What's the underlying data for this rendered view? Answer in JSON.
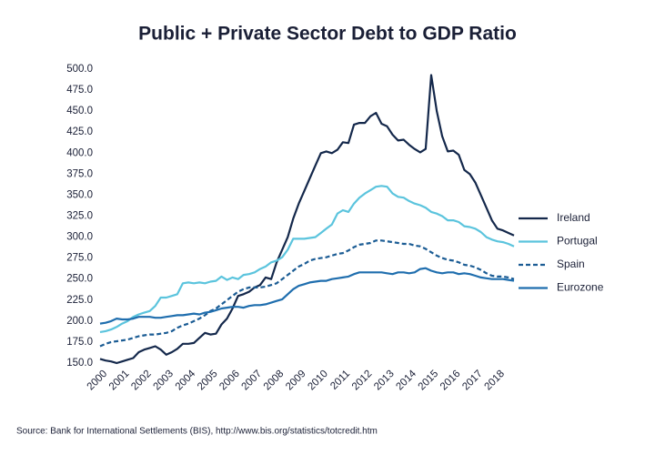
{
  "chart_data": {
    "type": "line",
    "title": "Public + Private Sector Debt to GDP Ratio",
    "source": "Source: Bank for International Settlements (BIS), http://www.bis.org/statistics/totcredit.htm",
    "x": [
      2000,
      2000.25,
      2000.5,
      2000.75,
      2001,
      2001.25,
      2001.5,
      2001.75,
      2002,
      2002.25,
      2002.5,
      2002.75,
      2003,
      2003.25,
      2003.5,
      2003.75,
      2004,
      2004.25,
      2004.5,
      2004.75,
      2005,
      2005.25,
      2005.5,
      2005.75,
      2006,
      2006.25,
      2006.5,
      2006.75,
      2007,
      2007.25,
      2007.5,
      2007.75,
      2008,
      2008.25,
      2008.5,
      2008.75,
      2009,
      2009.25,
      2009.5,
      2009.75,
      2010,
      2010.25,
      2010.5,
      2010.75,
      2011,
      2011.25,
      2011.5,
      2011.75,
      2012,
      2012.25,
      2012.5,
      2012.75,
      2013,
      2013.25,
      2013.5,
      2013.75,
      2014,
      2014.25,
      2014.5,
      2014.75,
      2015,
      2015.25,
      2015.5,
      2015.75,
      2016,
      2016.25,
      2016.5,
      2016.75,
      2017,
      2017.25,
      2017.5,
      2017.75,
      2018,
      2018.25,
      2018.5,
      2018.75
    ],
    "series": [
      {
        "name": "Ireland",
        "color": "#14284b",
        "line_style": "solid",
        "values": [
          155,
          153,
          152,
          150,
          152,
          154,
          156,
          163,
          166,
          168,
          170,
          166,
          160,
          163,
          167,
          173,
          173,
          174,
          180,
          186,
          184,
          185,
          196,
          203,
          215,
          230,
          232,
          235,
          240,
          243,
          252,
          250,
          270,
          285,
          300,
          322,
          340,
          355,
          370,
          385,
          400,
          402,
          400,
          404,
          413,
          412,
          434,
          436,
          436,
          444,
          448,
          435,
          432,
          422,
          415,
          416,
          410,
          405,
          401,
          405,
          493,
          450,
          420,
          402,
          403,
          398,
          380,
          375,
          365,
          350,
          335,
          320,
          310,
          308,
          305,
          302
        ]
      },
      {
        "name": "Portugal",
        "color": "#5bc4dd",
        "line_style": "solid",
        "values": [
          187,
          188,
          190,
          193,
          197,
          200,
          205,
          208,
          210,
          212,
          218,
          228,
          228,
          230,
          232,
          245,
          246,
          245,
          246,
          245,
          247,
          248,
          253,
          249,
          252,
          250,
          255,
          256,
          258,
          262,
          265,
          270,
          272,
          276,
          285,
          298,
          298,
          298,
          299,
          300,
          305,
          310,
          315,
          328,
          332,
          330,
          340,
          347,
          352,
          356,
          360,
          361,
          360,
          352,
          348,
          347,
          343,
          340,
          338,
          335,
          330,
          328,
          325,
          320,
          320,
          318,
          313,
          312,
          310,
          306,
          300,
          297,
          295,
          294,
          292,
          289
        ]
      },
      {
        "name": "Spain",
        "color": "#1b5c94",
        "line_style": "dashed",
        "values": [
          170,
          173,
          175,
          176,
          177,
          178,
          180,
          182,
          183,
          184,
          184,
          185,
          186,
          188,
          192,
          195,
          197,
          200,
          203,
          207,
          212,
          215,
          220,
          225,
          230,
          235,
          238,
          240,
          240,
          240,
          241,
          243,
          245,
          250,
          255,
          260,
          265,
          268,
          272,
          274,
          275,
          276,
          278,
          280,
          281,
          284,
          288,
          291,
          292,
          293,
          296,
          296,
          295,
          294,
          293,
          292,
          292,
          290,
          289,
          286,
          282,
          278,
          275,
          273,
          272,
          270,
          267,
          266,
          264,
          261,
          257,
          254,
          253,
          253,
          252,
          250
        ]
      },
      {
        "name": "Eurozone",
        "color": "#1f6eae",
        "line_style": "solid",
        "values": [
          197,
          198,
          200,
          203,
          202,
          202,
          203,
          205,
          205,
          205,
          204,
          204,
          205,
          206,
          207,
          207,
          208,
          209,
          208,
          210,
          211,
          213,
          215,
          216,
          217,
          217,
          216,
          218,
          219,
          219,
          220,
          222,
          224,
          226,
          232,
          238,
          242,
          244,
          246,
          247,
          248,
          248,
          250,
          251,
          252,
          253,
          256,
          258,
          258,
          258,
          258,
          258,
          257,
          256,
          258,
          258,
          257,
          258,
          262,
          263,
          260,
          258,
          257,
          258,
          258,
          256,
          257,
          256,
          254,
          252,
          251,
          250,
          250,
          250,
          249,
          248
        ]
      }
    ],
    "xlim": [
      2000,
      2018.75
    ],
    "xticks": [
      2000,
      2001,
      2002,
      2003,
      2004,
      2005,
      2006,
      2007,
      2008,
      2009,
      2010,
      2011,
      2012,
      2013,
      2014,
      2015,
      2016,
      2017,
      2018
    ],
    "ylim": [
      150,
      500
    ],
    "yticks": [
      {
        "value": 150,
        "label": "150.0"
      },
      {
        "value": 175,
        "label": "175.0"
      },
      {
        "value": 200,
        "label": "200.0"
      },
      {
        "value": 225,
        "label": "225.0"
      },
      {
        "value": 250,
        "label": "250.0"
      },
      {
        "value": 275,
        "label": "275.0"
      },
      {
        "value": 300,
        "label": "300.0"
      },
      {
        "value": 325,
        "label": "325.0"
      },
      {
        "value": 350,
        "label": "350.0"
      },
      {
        "value": 375,
        "label": "375.0"
      },
      {
        "value": 400,
        "label": "400.0"
      },
      {
        "value": 425,
        "label": "425.0"
      },
      {
        "value": 450,
        "label": "450.0"
      },
      {
        "value": 475,
        "label": "475.0"
      },
      {
        "value": 500,
        "label": "500.0"
      }
    ],
    "legend": "right"
  }
}
